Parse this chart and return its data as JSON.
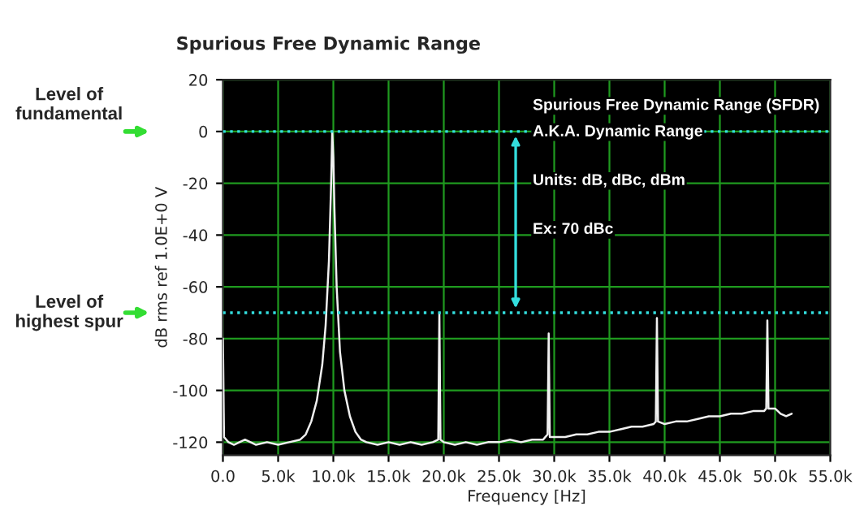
{
  "chart_data": {
    "type": "line",
    "title": "Spurious Free Dynamic Range",
    "xlabel": "Frequency [Hz]",
    "ylabel": "dB rms ref 1.0E+0 V",
    "series": [
      {
        "color": "#f0f0f0",
        "x": [
          0,
          100,
          500,
          1000,
          2000,
          3000,
          4000,
          5000,
          6000,
          7000,
          7500,
          8000,
          8500,
          9000,
          9300,
          9600,
          9800,
          9900,
          10000,
          10100,
          10300,
          10600,
          11000,
          11500,
          12000,
          12500,
          13000,
          14000,
          15000,
          16000,
          17000,
          18000,
          19000,
          19500,
          19600,
          19700,
          20000,
          21000,
          22000,
          23000,
          24000,
          25000,
          26000,
          27000,
          28000,
          29000,
          29400,
          29500,
          29600,
          30000,
          31000,
          32000,
          33000,
          34000,
          35000,
          36000,
          37000,
          38000,
          39000,
          39200,
          39300,
          39400,
          40000,
          41000,
          42000,
          43000,
          44000,
          45000,
          46000,
          47000,
          48000,
          49000,
          49200,
          49300,
          49400,
          50000,
          50500,
          51000,
          51500
        ],
        "values": [
          -80,
          -118,
          -120,
          -121,
          -119,
          -121,
          -120,
          -121,
          -120,
          -119,
          -117,
          -112,
          -104,
          -90,
          -75,
          -50,
          -20,
          0,
          -10,
          -30,
          -60,
          -85,
          -100,
          -110,
          -116,
          -119,
          -120,
          -121,
          -120,
          -121,
          -120,
          -121,
          -120,
          -119,
          -70,
          -119,
          -120,
          -121,
          -120,
          -121,
          -120,
          -120,
          -119,
          -120,
          -119,
          -119,
          -117,
          -78,
          -118,
          -118,
          -118,
          -117,
          -117,
          -116,
          -116,
          -115,
          -114,
          -114,
          -113,
          -112,
          -72,
          -112,
          -113,
          -112,
          -112,
          -111,
          -110,
          -110,
          -109,
          -109,
          -108,
          -108,
          -107,
          -73,
          -107,
          -107,
          -109,
          -110,
          -109
        ]
      }
    ],
    "xlim": [
      0,
      55000
    ],
    "xticks": [
      {
        "value": 0,
        "label": "0.0"
      },
      {
        "value": 5000,
        "label": "5.0k"
      },
      {
        "value": 10000,
        "label": "10.0k"
      },
      {
        "value": 15000,
        "label": "15.0k"
      },
      {
        "value": 20000,
        "label": "20.0k"
      },
      {
        "value": 25000,
        "label": "25.0k"
      },
      {
        "value": 30000,
        "label": "30.0k"
      },
      {
        "value": 35000,
        "label": "35.0k"
      },
      {
        "value": 40000,
        "label": "40.0k"
      },
      {
        "value": 45000,
        "label": "45.0k"
      },
      {
        "value": 50000,
        "label": "50.0k"
      },
      {
        "value": 55000,
        "label": "55.0k"
      }
    ],
    "ylim": [
      -125,
      20
    ],
    "yticks": [
      -120,
      -100,
      -80,
      -60,
      -40,
      -20,
      0,
      20
    ],
    "ref_lines": [
      {
        "axis": "y",
        "value": 0,
        "color": "#33dddd",
        "line_style": "dotted"
      },
      {
        "axis": "y",
        "value": -70,
        "color": "#33dddd",
        "line_style": "dotted"
      }
    ],
    "annotations": [
      "Level of fundamental",
      "Level of highest spur",
      "Spurious Free Dynamic Range (SFDR)",
      "A.K.A. Dynamic Range",
      "Units: dB, dBc, dBm",
      "Ex: 70 dBc"
    ],
    "grid": true,
    "marker": "none",
    "line_style": "solid",
    "legend": false
  }
}
